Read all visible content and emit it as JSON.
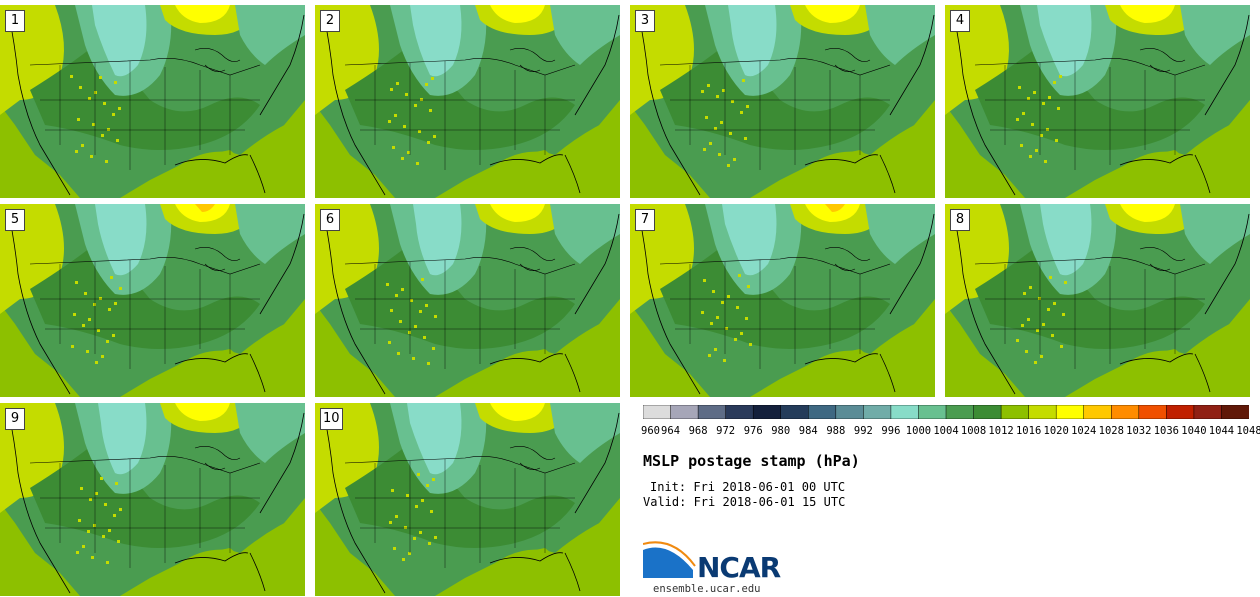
{
  "panels": [
    {
      "label": "1"
    },
    {
      "label": "2"
    },
    {
      "label": "3"
    },
    {
      "label": "4"
    },
    {
      "label": "5"
    },
    {
      "label": "6"
    },
    {
      "label": "7"
    },
    {
      "label": "8"
    },
    {
      "label": "9"
    },
    {
      "label": "10"
    }
  ],
  "colorbar": {
    "colors": [
      "#dcdcdc",
      "#a6a6b8",
      "#5e6c86",
      "#2a3a5a",
      "#14203c",
      "#243c5a",
      "#3e6882",
      "#5a8c96",
      "#70aca8",
      "#88dcc8",
      "#68c090",
      "#4a9c50",
      "#3c8c34",
      "#8dc000",
      "#c4dc00",
      "#ffff00",
      "#ffc800",
      "#ff8c00",
      "#f05000",
      "#c02000",
      "#902014",
      "#601808"
    ],
    "tick_labels": [
      "960",
      "964",
      "968",
      "972",
      "976",
      "980",
      "984",
      "988",
      "992",
      "996",
      "1000",
      "1004",
      "1008",
      "1012",
      "1016",
      "1020",
      "1024",
      "1028",
      "1032",
      "1036",
      "1040",
      "1044",
      "1048"
    ]
  },
  "map_colors": {
    "ocean": "#8dc000",
    "land_base": "#4a9c50",
    "dark_green": "#3c8c34",
    "mid_green": "#68c090",
    "light_teal": "#88dcc8",
    "pale_lime": "#c4dc00",
    "yellow": "#ffff00",
    "orange": "#ffc800",
    "line": "#000000"
  },
  "title": "MSLP postage stamp (hPa)",
  "init": "Init: Fri 2018-06-01 00 UTC",
  "valid": "Valid: Fri 2018-06-01 15 UTC",
  "logo": {
    "text": "NCAR",
    "url": "ensemble.ucar.edu"
  }
}
